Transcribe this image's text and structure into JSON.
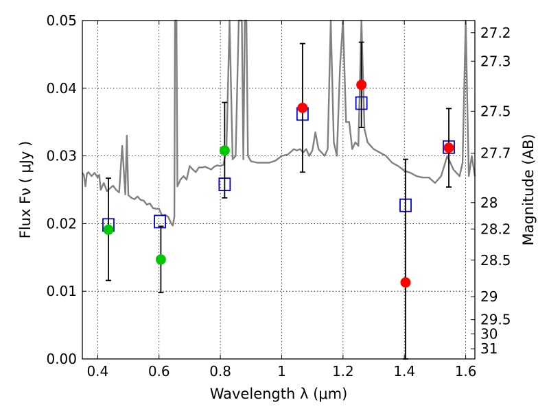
{
  "chart_data": {
    "type": "scatter",
    "title": "",
    "xlabel": "Wavelength  λ (μm)",
    "ylabel": "Flux  Fν  ( μJy )",
    "y2label": "Magnitude (AB)",
    "xlim": [
      0.35,
      1.63
    ],
    "ylim": [
      0,
      0.05
    ],
    "grid": true,
    "x_ticks": [
      0.4,
      0.6,
      0.8,
      1.0,
      1.2,
      1.4,
      1.6
    ],
    "x_tick_labels": [
      "0.4",
      "0.6",
      "0.8",
      "1",
      "1.2",
      "1.4",
      "1.6"
    ],
    "y_ticks": [
      0.0,
      0.01,
      0.02,
      0.03,
      0.04,
      0.05
    ],
    "y_tick_labels": [
      "0.00",
      "0.01",
      "0.02",
      "0.03",
      "0.04",
      "0.05"
    ],
    "y2_ticks": [
      {
        "label": "27.2",
        "flux": 0.0482
      },
      {
        "label": "27.3",
        "flux": 0.044
      },
      {
        "label": "27.5",
        "flux": 0.0366
      },
      {
        "label": "27.7",
        "flux": 0.0304
      },
      {
        "label": "28",
        "flux": 0.0231
      },
      {
        "label": "28.2",
        "flux": 0.0192
      },
      {
        "label": "28.5",
        "flux": 0.0146
      },
      {
        "label": "29",
        "flux": 0.0092
      },
      {
        "label": "29.5",
        "flux": 0.0058
      },
      {
        "label": "30",
        "flux": 0.0037
      },
      {
        "label": "31",
        "flux": 0.0015
      }
    ],
    "series": [
      {
        "kind": "line",
        "color": "#808080",
        "x": [
          0.35,
          0.355,
          0.36,
          0.365,
          0.37,
          0.38,
          0.39,
          0.4,
          0.405,
          0.41,
          0.42,
          0.43,
          0.44,
          0.45,
          0.46,
          0.47,
          0.48,
          0.49,
          0.495,
          0.5,
          0.51,
          0.52,
          0.53,
          0.54,
          0.55,
          0.56,
          0.57,
          0.58,
          0.59,
          0.6,
          0.61,
          0.62,
          0.63,
          0.64,
          0.645,
          0.65,
          0.652,
          0.654,
          0.657,
          0.66,
          0.67,
          0.68,
          0.69,
          0.7,
          0.71,
          0.72,
          0.73,
          0.74,
          0.75,
          0.76,
          0.77,
          0.78,
          0.79,
          0.8,
          0.81,
          0.82,
          0.83,
          0.84,
          0.85,
          0.86,
          0.87,
          0.875,
          0.88,
          0.885,
          0.89,
          0.9,
          0.92,
          0.94,
          0.96,
          0.98,
          1.0,
          1.02,
          1.04,
          1.05,
          1.06,
          1.07,
          1.08,
          1.09,
          1.1,
          1.11,
          1.12,
          1.13,
          1.14,
          1.15,
          1.16,
          1.17,
          1.18,
          1.19,
          1.2,
          1.21,
          1.22,
          1.23,
          1.24,
          1.25,
          1.26,
          1.27,
          1.28,
          1.3,
          1.32,
          1.34,
          1.36,
          1.38,
          1.4,
          1.42,
          1.44,
          1.46,
          1.48,
          1.5,
          1.52,
          1.54,
          1.56,
          1.58,
          1.59,
          1.6,
          1.61,
          1.62,
          1.63
        ],
        "y": [
          0.0275,
          0.0272,
          0.0255,
          0.0274,
          0.0276,
          0.027,
          0.0275,
          0.0268,
          0.0272,
          0.025,
          0.026,
          0.0248,
          0.0252,
          0.0256,
          0.025,
          0.0246,
          0.0315,
          0.0243,
          0.033,
          0.0242,
          0.0238,
          0.0236,
          0.024,
          0.0235,
          0.0234,
          0.0228,
          0.023,
          0.0223,
          0.0222,
          0.0222,
          0.0212,
          0.0213,
          0.021,
          0.02,
          0.0197,
          0.021,
          0.05,
          0.05,
          0.05,
          0.0255,
          0.0265,
          0.027,
          0.0265,
          0.0285,
          0.028,
          0.0276,
          0.0283,
          0.0283,
          0.0284,
          0.0282,
          0.028,
          0.0284,
          0.0286,
          0.0285,
          0.0287,
          0.031,
          0.05,
          0.0295,
          0.03,
          0.05,
          0.05,
          0.0295,
          0.05,
          0.05,
          0.03,
          0.0292,
          0.029,
          0.029,
          0.029,
          0.0293,
          0.03,
          0.0302,
          0.031,
          0.0308,
          0.031,
          0.0305,
          0.031,
          0.03,
          0.0308,
          0.0335,
          0.031,
          0.0305,
          0.03,
          0.031,
          0.05,
          0.032,
          0.03,
          0.043,
          0.05,
          0.035,
          0.035,
          0.031,
          0.032,
          0.0315,
          0.05,
          0.034,
          0.032,
          0.031,
          0.0305,
          0.03,
          0.029,
          0.0285,
          0.0278,
          0.0275,
          0.027,
          0.0268,
          0.0268,
          0.026,
          0.027,
          0.03,
          0.028,
          0.027,
          0.029,
          0.05,
          0.027,
          0.03,
          0.027
        ]
      },
      {
        "kind": "squares",
        "color": "#0000cc",
        "x": [
          0.435,
          0.603,
          0.814,
          1.068,
          1.26,
          1.404,
          1.545
        ],
        "y": [
          0.0198,
          0.0203,
          0.0258,
          0.0362,
          0.0378,
          0.0227,
          0.0313
        ]
      },
      {
        "kind": "points",
        "color": "#00c800",
        "x": [
          0.435,
          0.606,
          0.814
        ],
        "y": [
          0.0191,
          0.0147,
          0.0308
        ],
        "err_low": [
          0.0075,
          0.0049,
          0.007
        ],
        "err_high": [
          0.0076,
          0.0049,
          0.0071
        ]
      },
      {
        "kind": "points",
        "color": "#ff0000",
        "x": [
          1.068,
          1.26,
          1.404,
          1.545
        ],
        "y": [
          0.0371,
          0.0405,
          0.0113,
          0.0312
        ],
        "err_low": [
          0.0095,
          0.0063,
          0.0113,
          0.0058
        ],
        "err_high": [
          0.0095,
          0.0063,
          0.0182,
          0.0058
        ]
      }
    ]
  }
}
